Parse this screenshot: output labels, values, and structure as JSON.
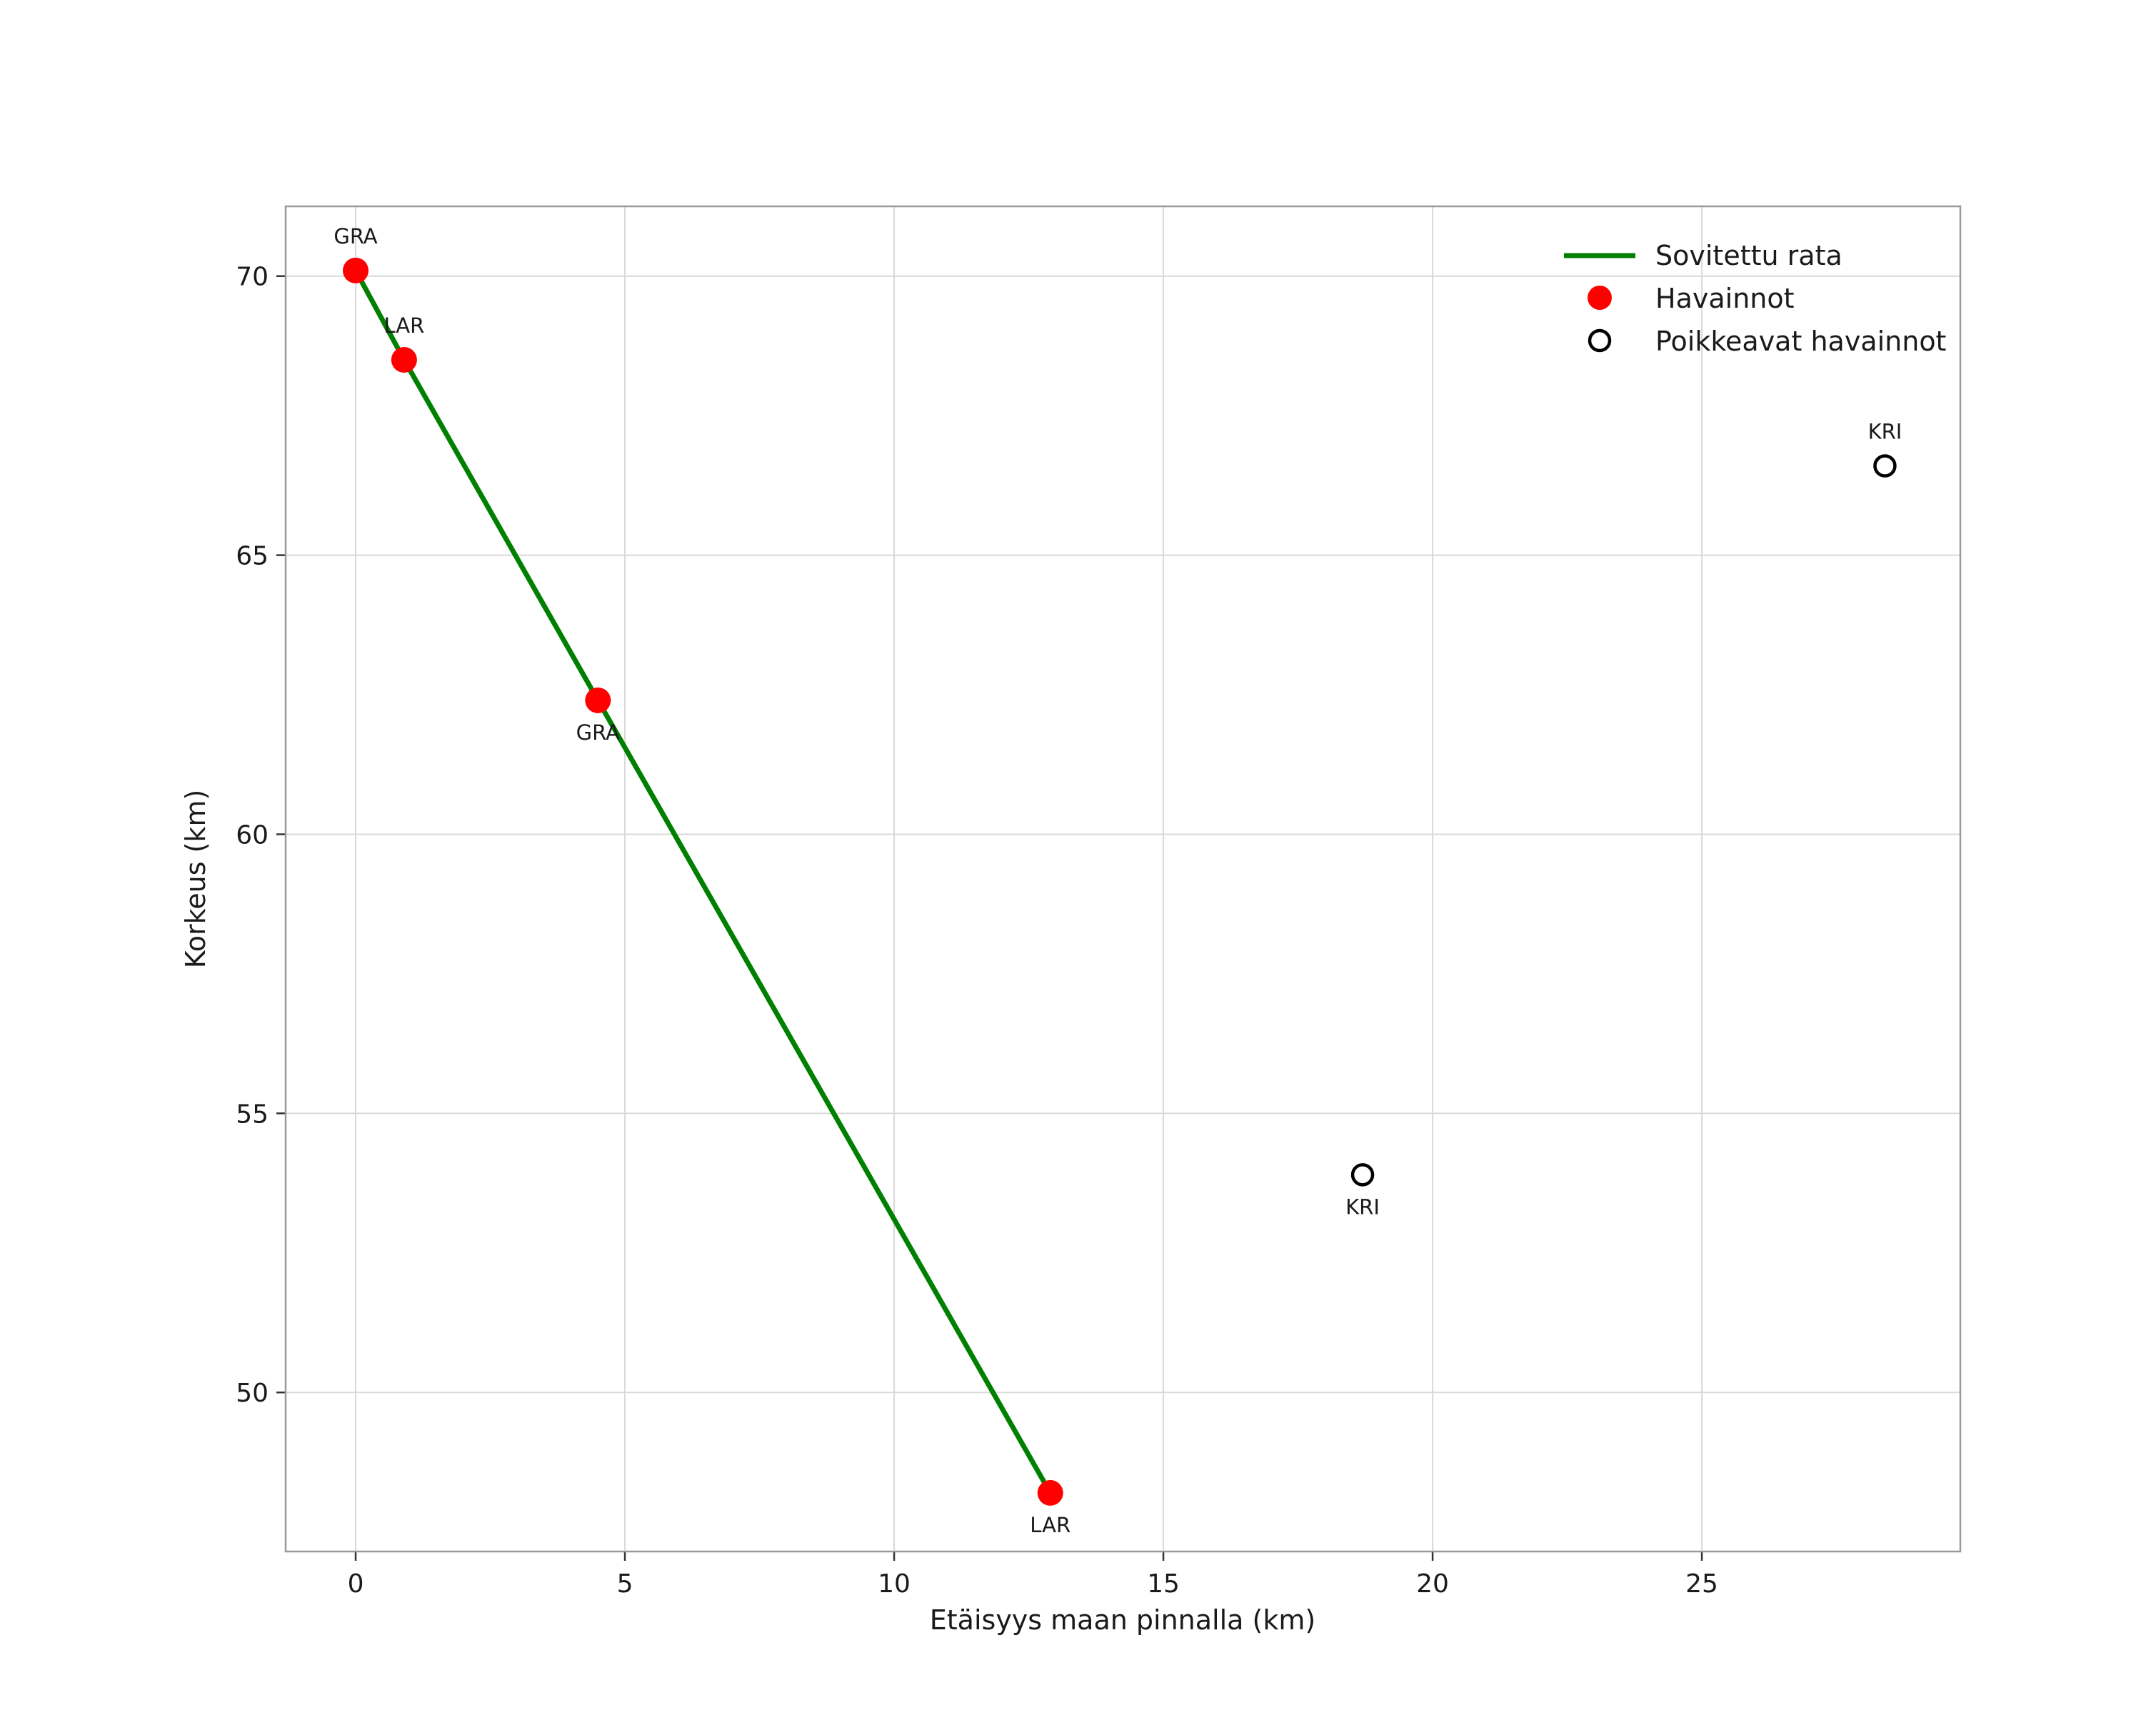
{
  "chart_data": {
    "type": "line",
    "title": "",
    "xlabel": "Etäisyys maan pinnalla (km)",
    "ylabel": "Korkeus (km)",
    "xlim": [
      -1.3,
      29.8
    ],
    "ylim": [
      47.15,
      71.25
    ],
    "xticks": [
      0,
      5,
      10,
      15,
      20,
      25
    ],
    "yticks": [
      50,
      55,
      60,
      65,
      70
    ],
    "grid": true,
    "colors": {
      "fitted_line": "#008000",
      "observation": "#ff0000",
      "outlier_stroke": "#000000",
      "grid": "#d9d9d9",
      "spine": "#9a9a9a"
    },
    "legend": {
      "position": "top-right",
      "entries": [
        {
          "label": "Sovitettu rata",
          "type": "line",
          "color": "#008000"
        },
        {
          "label": "Havainnot",
          "type": "filled-dot",
          "color": "#ff0000"
        },
        {
          "label": "Poikkeavat havainnot",
          "type": "open-dot",
          "color": "#000000"
        }
      ]
    },
    "series": [
      {
        "name": "Sovitettu rata",
        "kind": "fitted-line",
        "points": [
          [
            0,
            70.1
          ],
          [
            0.9,
            68.5
          ],
          [
            4.5,
            62.4
          ],
          [
            12.9,
            48.2
          ]
        ]
      },
      {
        "name": "Havainnot",
        "kind": "observations",
        "points": [
          {
            "x": 0,
            "y": 70.1,
            "label": "GRA",
            "label_pos": "above"
          },
          {
            "x": 0.9,
            "y": 68.5,
            "label": "LAR",
            "label_pos": "above"
          },
          {
            "x": 4.5,
            "y": 62.4,
            "label": "GRA",
            "label_pos": "below"
          },
          {
            "x": 12.9,
            "y": 48.2,
            "label": "LAR",
            "label_pos": "below"
          }
        ]
      },
      {
        "name": "Poikkeavat havainnot",
        "kind": "outliers",
        "points": [
          {
            "x": 18.7,
            "y": 53.9,
            "label": "KRI",
            "label_pos": "below"
          },
          {
            "x": 28.4,
            "y": 66.6,
            "label": "KRI",
            "label_pos": "above"
          }
        ]
      }
    ]
  }
}
